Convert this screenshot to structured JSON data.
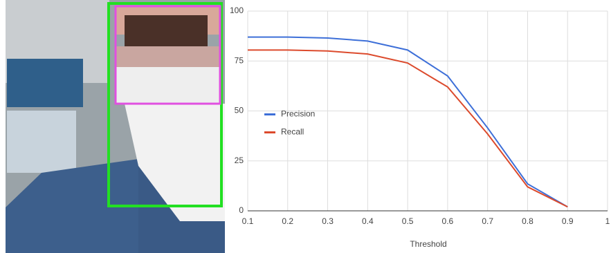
{
  "chart_data": {
    "type": "line",
    "x_label": "Threshold",
    "x": [
      0.1,
      0.2,
      0.3,
      0.4,
      0.5,
      0.6,
      0.7,
      0.8,
      0.9
    ],
    "series": [
      {
        "name": "Precision",
        "color": "#3d6fd8",
        "values": [
          87,
          87,
          86.5,
          85,
          80.5,
          67.5,
          41.5,
          13.5,
          2
        ]
      },
      {
        "name": "Recall",
        "color": "#dc4a2c",
        "values": [
          80.5,
          80.5,
          80,
          78.5,
          74,
          62,
          38.5,
          12,
          2
        ]
      }
    ],
    "xlim": [
      0.1,
      1
    ],
    "xticks": [
      0.1,
      0.2,
      0.3,
      0.4,
      0.5,
      0.6,
      0.7,
      0.8,
      0.9,
      1
    ],
    "ylim": [
      0,
      100
    ],
    "yticks": [
      0,
      25,
      50,
      75,
      100
    ],
    "grid": true,
    "legend_position": "center-left"
  }
}
